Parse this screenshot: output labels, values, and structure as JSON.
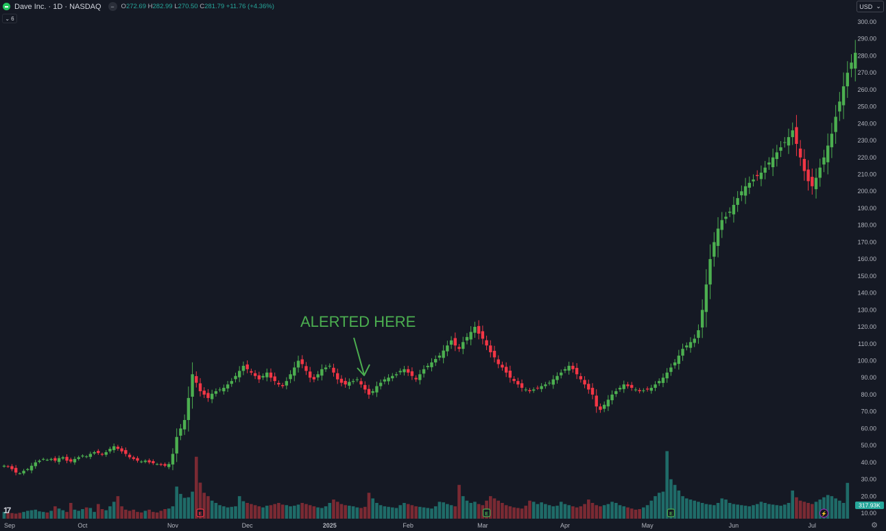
{
  "header": {
    "symbol": "Dave Inc. · 1D · NASDAQ",
    "ohlc": {
      "o_label": "O",
      "o": "272.69",
      "h_label": "H",
      "h": "282.99",
      "l_label": "L",
      "l": "270.50",
      "c_label": "C",
      "c": "281.79",
      "change": "+11.76 (+4.36%)"
    },
    "minus_icon": "minus-icon",
    "indicator_count": "6",
    "currency": "USD"
  },
  "annotation": {
    "text": "ALERTED HERE",
    "color": "#4caf50"
  },
  "volume_label": "317.93K",
  "colors": {
    "background": "#151924",
    "up": "#4caf50",
    "down": "#f23645",
    "vol_up": "#1f6b68",
    "vol_down": "#7a2a33",
    "grid": "#1e222d",
    "axis_text": "#b2b5be"
  },
  "chart_data": {
    "type": "candlestick",
    "interval": "1D",
    "y_axis": {
      "ticks": [
        "300.00",
        "290.00",
        "280.00",
        "270.00",
        "260.00",
        "250.00",
        "240.00",
        "230.00",
        "220.00",
        "210.00",
        "200.00",
        "190.00",
        "180.00",
        "170.00",
        "160.00",
        "150.00",
        "140.00",
        "130.00",
        "120.00",
        "110.00",
        "100.00",
        "90.00",
        "80.00",
        "70.00",
        "60.00",
        "50.00",
        "40.00",
        "30.00",
        "20.00",
        "10.00"
      ],
      "range": [
        6,
        305
      ]
    },
    "x_axis": {
      "labels": [
        "Sep",
        "Oct",
        "Nov",
        "Dec",
        "2025",
        "Feb",
        "Mar",
        "Apr",
        "May",
        "Jun",
        "Jul"
      ]
    },
    "month_label_index": {
      "Sep": 0,
      "Oct": 20,
      "Nov": 43,
      "Dec": 62,
      "2025": 83,
      "Feb": 103,
      "Mar": 122,
      "Apr": 143,
      "May": 164,
      "Jun": 186,
      "Jul": 206
    },
    "events": [
      {
        "type": "earnings",
        "label": "E",
        "index": 50,
        "color": "#f23645"
      },
      {
        "type": "earnings",
        "label": "E",
        "index": 123,
        "color": "#4caf50"
      },
      {
        "type": "earnings",
        "label": "E",
        "index": 170,
        "color": "#4caf50"
      },
      {
        "type": "dividend",
        "label": "⚡",
        "index": 209,
        "color": "#9c27b0"
      }
    ],
    "close": [
      38,
      37.5,
      36,
      34,
      33.5,
      35,
      36,
      38,
      40,
      41,
      42,
      41.5,
      42,
      41,
      42.5,
      43,
      41,
      40.5,
      42,
      43,
      44,
      43.5,
      45,
      46,
      45.5,
      44.5,
      46,
      48,
      49.5,
      48,
      46.5,
      45,
      43,
      42,
      41,
      40.5,
      41,
      40,
      39.5,
      39,
      38.5,
      38,
      39,
      45,
      55,
      60,
      65,
      78,
      92,
      87,
      82,
      80,
      78,
      80.5,
      82,
      83,
      84,
      86,
      88,
      91,
      94,
      97,
      95,
      93,
      91,
      89,
      91,
      93,
      90,
      88,
      86,
      85,
      88,
      92,
      96,
      100,
      98,
      94,
      90,
      89,
      92,
      95,
      96,
      97,
      93,
      89,
      87,
      86,
      87.5,
      88,
      89,
      86,
      83,
      80,
      82,
      85,
      87,
      89,
      90,
      91,
      92,
      94,
      95,
      93,
      91,
      89,
      92,
      95,
      97,
      99,
      101,
      103,
      106,
      109,
      112,
      109,
      107,
      111,
      114,
      117,
      120,
      116,
      113,
      109,
      105,
      102,
      98,
      96,
      93,
      90,
      88,
      86,
      84,
      83,
      82,
      83,
      84,
      85,
      86,
      87,
      89,
      91,
      93,
      95,
      97,
      95,
      92,
      89,
      86,
      83,
      80,
      73,
      71,
      74,
      77,
      80,
      82,
      84,
      86,
      85,
      84,
      83,
      82,
      82.5,
      83,
      84,
      86,
      88,
      90,
      93,
      96,
      99,
      103,
      107,
      109,
      111,
      113,
      118,
      130,
      145,
      160,
      170,
      178,
      183,
      185,
      188,
      192,
      196,
      200,
      203,
      205,
      207,
      209,
      211,
      214,
      217,
      220,
      223,
      226,
      229,
      232,
      236,
      228,
      220,
      212,
      206,
      203,
      208,
      214,
      220,
      227,
      234,
      244,
      253,
      262,
      270,
      276,
      281.79
    ],
    "volume_k": [
      60,
      55,
      50,
      45,
      52,
      60,
      70,
      75,
      80,
      65,
      60,
      55,
      70,
      110,
      90,
      75,
      60,
      140,
      80,
      70,
      85,
      100,
      95,
      60,
      130,
      85,
      75,
      110,
      150,
      200,
      110,
      80,
      70,
      80,
      60,
      55,
      70,
      80,
      60,
      55,
      70,
      85,
      90,
      110,
      285,
      220,
      185,
      190,
      240,
      550,
      320,
      230,
      200,
      160,
      140,
      120,
      110,
      100,
      105,
      110,
      200,
      155,
      140,
      130,
      120,
      110,
      100,
      115,
      120,
      130,
      140,
      125,
      120,
      110,
      115,
      125,
      140,
      130,
      120,
      110,
      100,
      95,
      110,
      140,
      170,
      150,
      130,
      120,
      115,
      110,
      100,
      95,
      105,
      230,
      180,
      140,
      120,
      110,
      105,
      100,
      95,
      120,
      140,
      130,
      120,
      110,
      105,
      100,
      95,
      90,
      110,
      150,
      145,
      130,
      120,
      110,
      300,
      200,
      160,
      140,
      150,
      130,
      120,
      160,
      200,
      180,
      160,
      140,
      120,
      110,
      100,
      95,
      90,
      115,
      160,
      150,
      130,
      145,
      130,
      120,
      110,
      115,
      150,
      130,
      120,
      110,
      100,
      110,
      130,
      170,
      140,
      120,
      110,
      120,
      130,
      150,
      140,
      120,
      110,
      100,
      90,
      80,
      85,
      100,
      120,
      160,
      200,
      230,
      240,
      600,
      350,
      300,
      250,
      200,
      180,
      170,
      160,
      150,
      140,
      130,
      125,
      120,
      140,
      180,
      170,
      140,
      130,
      125,
      120,
      115,
      110,
      120,
      130,
      150,
      140,
      130,
      125,
      120,
      115,
      125,
      140,
      250,
      190,
      160,
      150,
      140,
      130,
      150,
      170,
      190,
      210,
      200,
      180,
      160,
      140,
      317.93
    ]
  }
}
